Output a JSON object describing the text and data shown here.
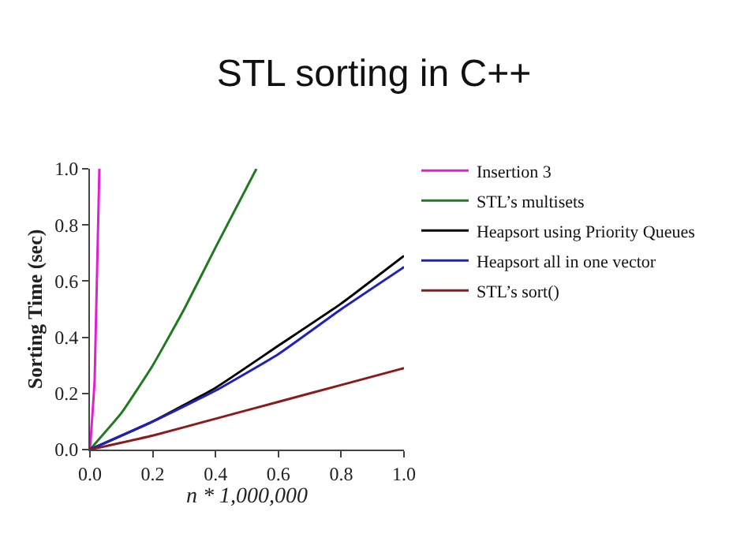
{
  "chart_data": {
    "type": "line",
    "title": "STL sorting in C++",
    "xlabel": "n * 1,000,000",
    "ylabel": "Sorting Time (sec)",
    "xlim": [
      0,
      1.0
    ],
    "ylim": [
      0,
      1.0
    ],
    "xticks": [
      {
        "value": 0,
        "label": "0.0"
      },
      0.2,
      0.4,
      0.6,
      0.8,
      {
        "value": 1,
        "label": "1.0"
      }
    ],
    "yticks": [
      {
        "value": 0,
        "label": "0.0"
      },
      0.2,
      0.4,
      0.6,
      0.8,
      {
        "value": 1,
        "label": "1.0"
      }
    ],
    "legend": "right",
    "marker": "none",
    "line_style": "solid",
    "series": [
      {
        "name": "Insertion 3",
        "color": "#e020d0",
        "x": [
          0,
          0.015,
          0.03
        ],
        "values": [
          0,
          0.25,
          1.0
        ]
      },
      {
        "name": "STL’s multisets",
        "color": "#207a20",
        "x": [
          0,
          0.1,
          0.2,
          0.3,
          0.4,
          0.53
        ],
        "values": [
          0,
          0.13,
          0.3,
          0.5,
          0.72,
          1.0
        ]
      },
      {
        "name": "Heapsort using Priority Queues",
        "color": "#000000",
        "x": [
          0,
          0.2,
          0.4,
          0.6,
          0.8,
          1.0
        ],
        "values": [
          0,
          0.1,
          0.22,
          0.37,
          0.52,
          0.69
        ]
      },
      {
        "name": "Heapsort all in one vector",
        "color": "#2020c0",
        "x": [
          0,
          0.2,
          0.4,
          0.6,
          0.8,
          1.0
        ],
        "values": [
          0,
          0.1,
          0.21,
          0.34,
          0.5,
          0.65
        ]
      },
      {
        "name": "STL’s sort()",
        "color": "#8b1a1a",
        "x": [
          0,
          0.2,
          0.4,
          0.6,
          0.8,
          1.0
        ],
        "values": [
          0,
          0.05,
          0.11,
          0.17,
          0.23,
          0.29
        ]
      }
    ]
  }
}
